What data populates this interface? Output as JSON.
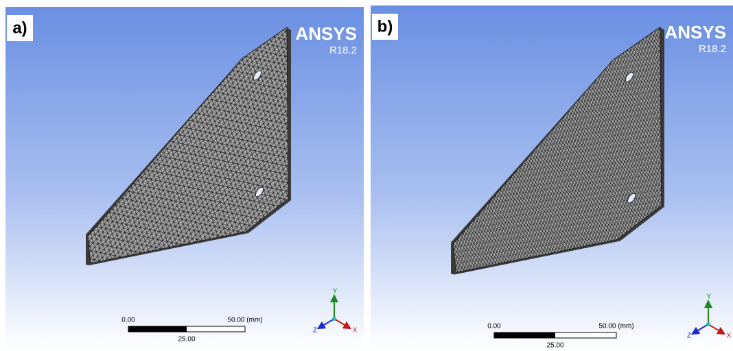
{
  "panels": [
    {
      "label": "a)",
      "logo": "ANSYS",
      "version": "R18.2",
      "scale": {
        "start": "0.00",
        "end": "50.00 (mm)",
        "mid": "25.00"
      },
      "axes": {
        "y": "Y",
        "z": "Z",
        "x": "X"
      }
    },
    {
      "label": "b)",
      "logo": "ANSYS",
      "version": "R18.2",
      "scale": {
        "start": "0.00",
        "end": "50.00 (mm)",
        "mid": "25.00"
      },
      "axes": {
        "y": "Y",
        "z": "Z",
        "x": "X"
      }
    }
  ]
}
